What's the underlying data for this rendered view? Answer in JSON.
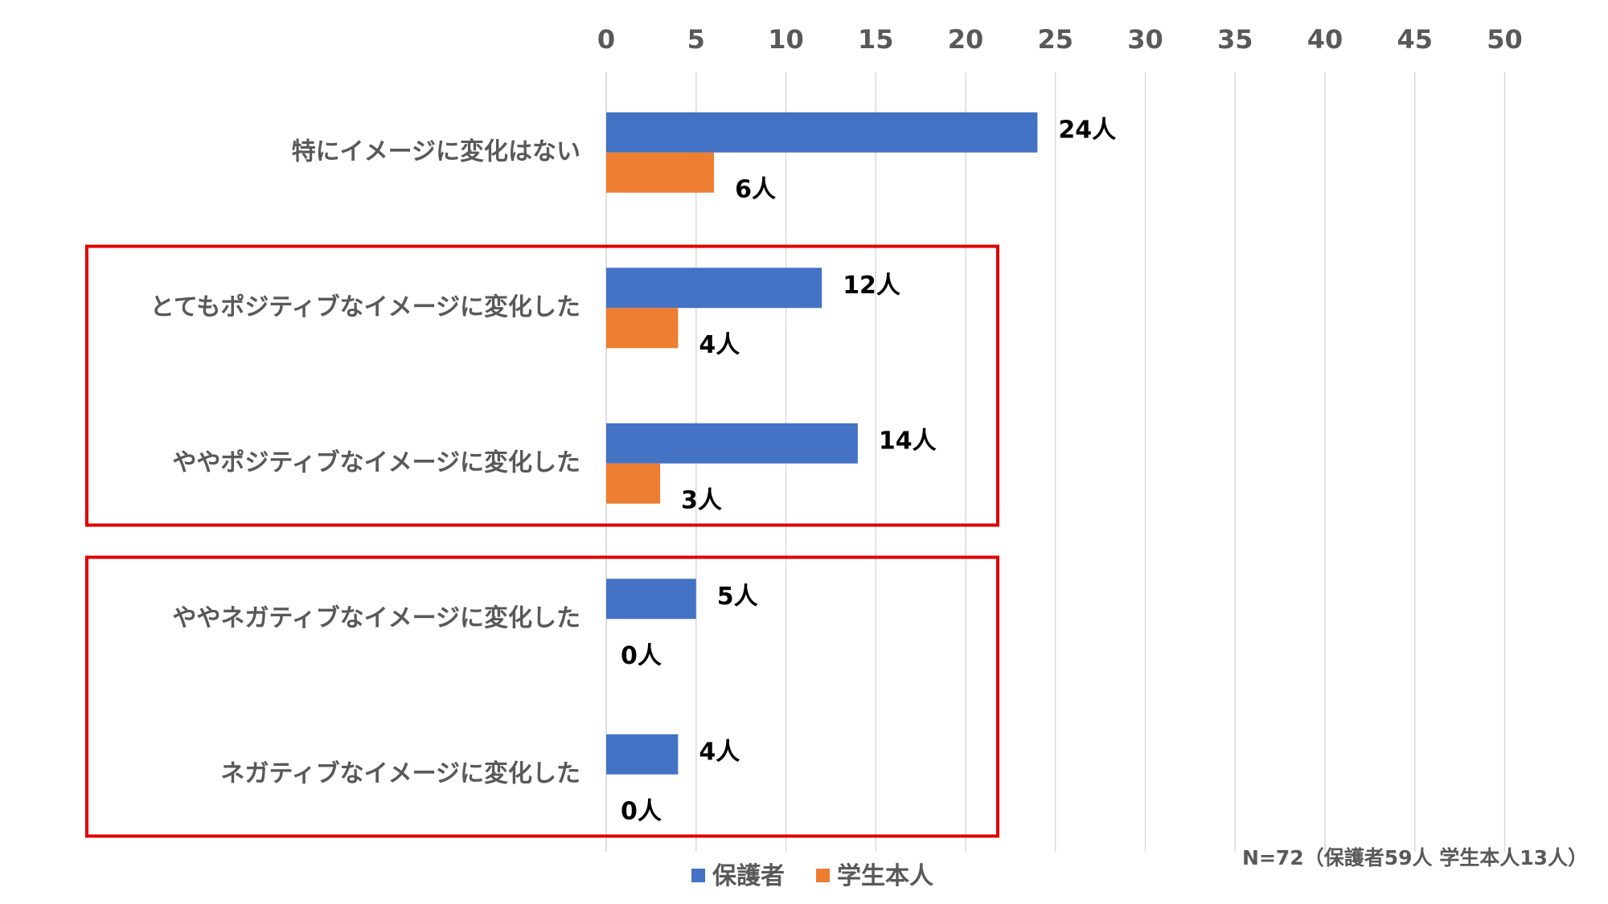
{
  "chart_data": {
    "type": "bar",
    "orientation": "horizontal",
    "categories": [
      "特にイメージに変化はない",
      "とてもポジティブなイメージに変化した",
      "ややポジティブなイメージに変化した",
      "ややネガティブなイメージに変化した",
      "ネガティブなイメージに変化した"
    ],
    "series": [
      {
        "name": "保護者",
        "values": [
          24,
          12,
          14,
          5,
          4
        ],
        "labels": [
          "24人",
          "12人",
          "14人",
          "5人",
          "4人"
        ],
        "color": "#4472C4"
      },
      {
        "name": "学生本人",
        "values": [
          6,
          4,
          3,
          0,
          0
        ],
        "labels": [
          "6人",
          "4人",
          "3人",
          "0人",
          "0人"
        ],
        "color": "#ED7D31"
      }
    ],
    "xticks": [
      "0",
      "5",
      "10",
      "15",
      "20",
      "25",
      "30",
      "35",
      "40",
      "45",
      "50"
    ],
    "xlim": [
      0,
      50
    ],
    "xaxis_position": "top",
    "grid": true,
    "legend": "bottom",
    "annotation": "N=72（保護者59人 学生本人13人）",
    "highlight_boxes": [
      {
        "categories": [
          1,
          2
        ],
        "color": "#E00000"
      },
      {
        "categories": [
          3,
          4
        ],
        "color": "#E00000"
      }
    ]
  }
}
